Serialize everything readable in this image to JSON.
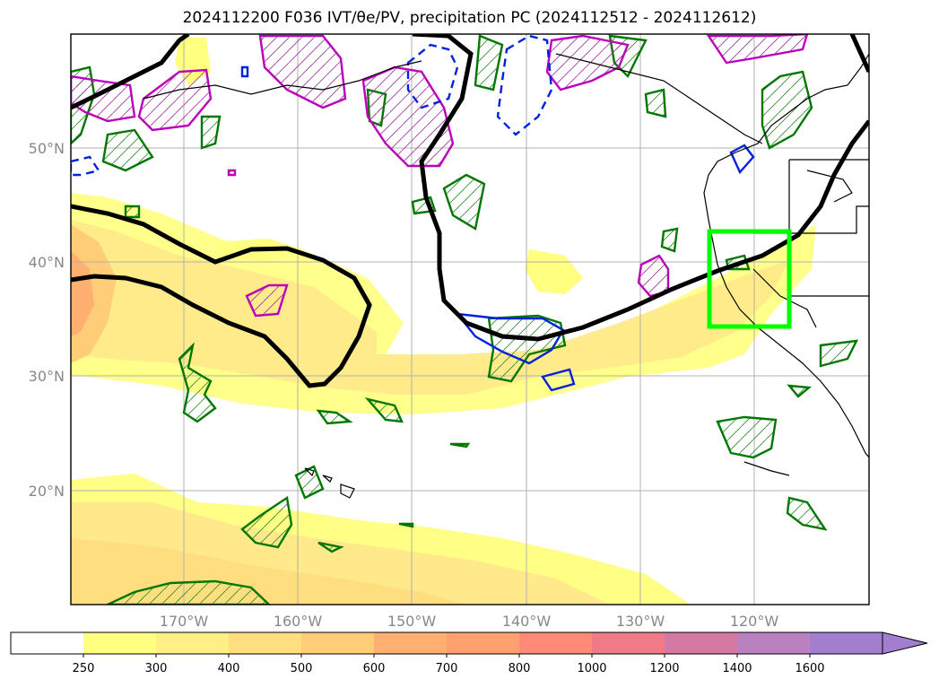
{
  "title": "2024112200 F036 IVT/θe/PV, precipitation PC (2024112512 - 2024112612)",
  "map": {
    "lat_labels": [
      "50°N",
      "40°N",
      "30°N",
      "20°N"
    ],
    "lon_labels": [
      "170°W",
      "160°W",
      "150°W",
      "140°W",
      "130°W",
      "120°W"
    ],
    "grid": true
  },
  "colorbar": {
    "ticks": [
      "250",
      "300",
      "400",
      "500",
      "600",
      "700",
      "800",
      "1000",
      "1200",
      "1400",
      "1600"
    ],
    "colors": [
      "#ffffff",
      "#ffff80",
      "#ffef85",
      "#ffde80",
      "#ffcc77",
      "#ffb070",
      "#ffa070",
      "#ff8a78",
      "#f07a88",
      "#d47aa2",
      "#bb80c0",
      "#a27fce"
    ],
    "extend": "max"
  },
  "legend_colors": {
    "theta_e_contour": "#000000",
    "pv_positive": "#bb00bb",
    "pv_negative": "#0022dd",
    "precip_pc": "#007700",
    "highlight_box": "#00ff00"
  }
}
